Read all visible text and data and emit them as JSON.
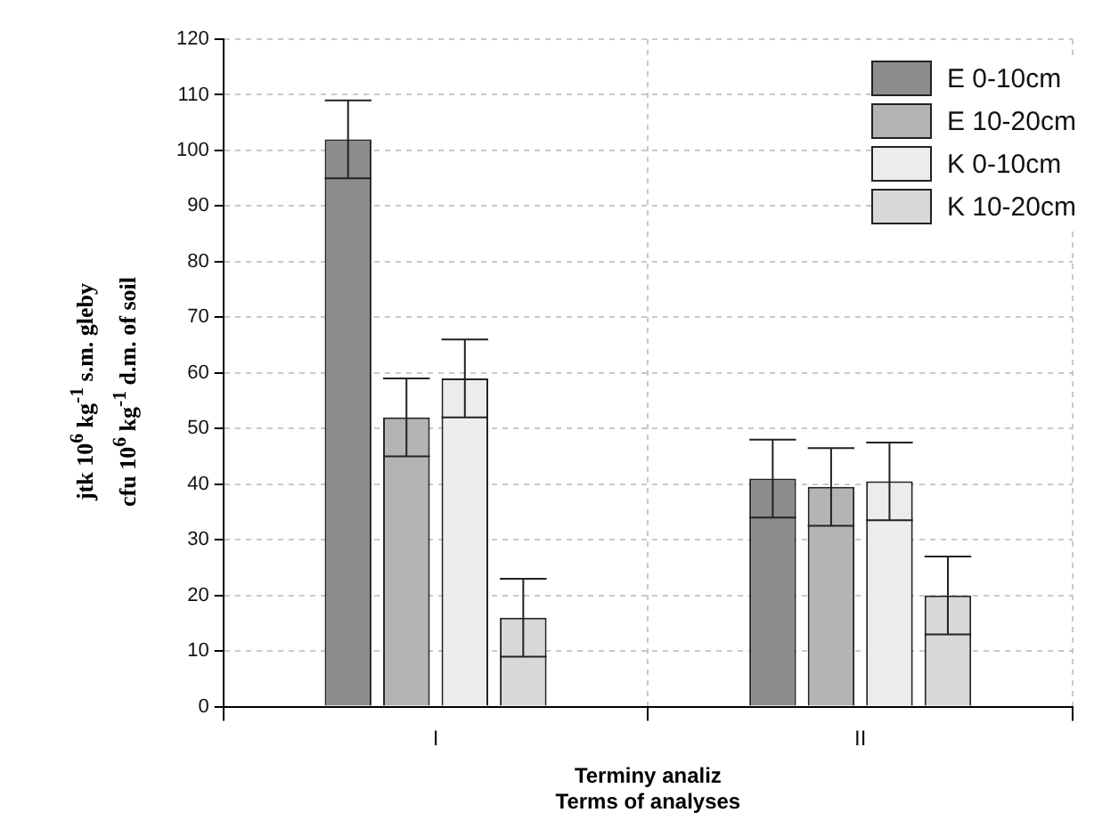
{
  "chart_data": {
    "type": "bar",
    "categories": [
      "I",
      "II"
    ],
    "series": [
      {
        "name": "E 0-10cm",
        "color": "#8c8c8c",
        "values": [
          102,
          41
        ],
        "errors": [
          7,
          7
        ]
      },
      {
        "name": "E 10-20cm",
        "color": "#b4b4b4",
        "values": [
          52,
          39.5
        ],
        "errors": [
          7,
          7
        ]
      },
      {
        "name": "K 0-10cm",
        "color": "#ececec",
        "values": [
          59,
          40.5
        ],
        "errors": [
          7,
          7
        ]
      },
      {
        "name": "K 10-20cm",
        "color": "#d8d8d8",
        "values": [
          16,
          20
        ],
        "errors": [
          7,
          7
        ]
      }
    ],
    "ylim": [
      0,
      120
    ],
    "yticks": [
      0,
      10,
      20,
      30,
      40,
      50,
      60,
      70,
      80,
      90,
      100,
      110,
      120
    ],
    "xlabel": "Terminy analiz\nTerms of analyses",
    "ylabel": "jtk 10$^{6}$ kg$^{-1}$ s.m. gleby\ncfu 10$^{6}$ kg$^{-1}$ d.m. of soil",
    "grid": true,
    "legend": "top right"
  }
}
